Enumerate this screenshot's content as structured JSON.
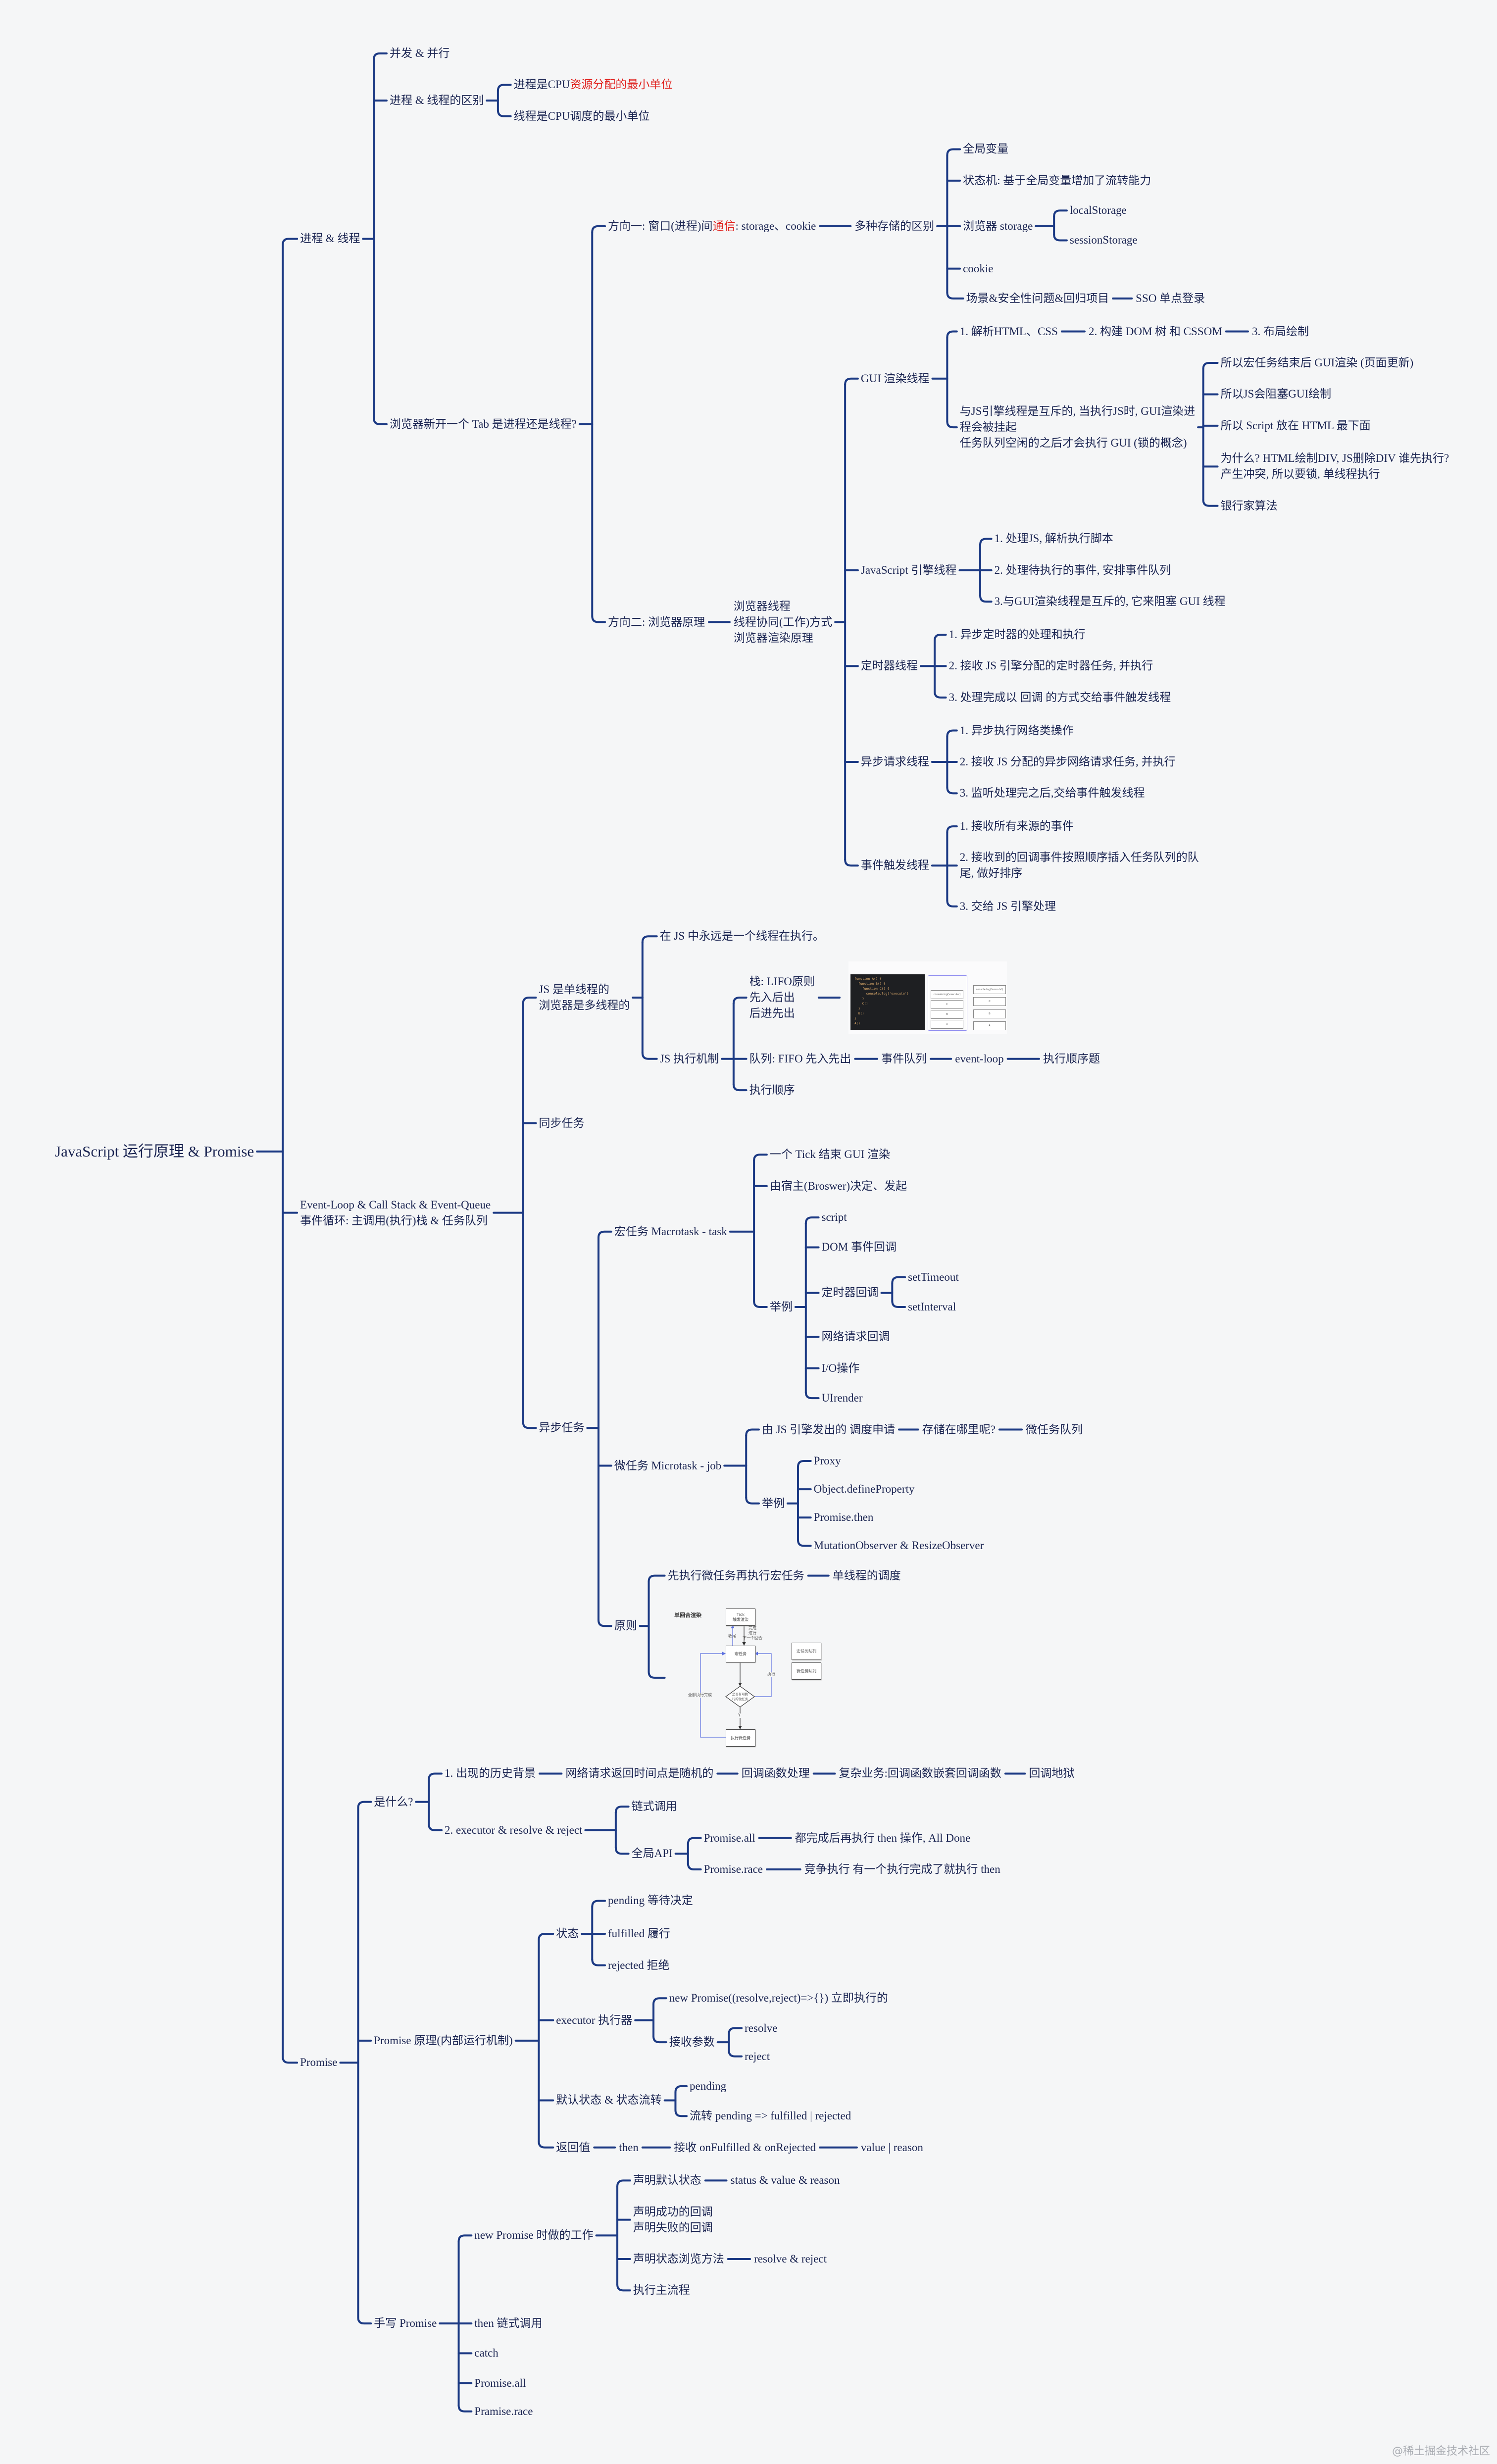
{
  "title": "JavaScript 运行原理 & Promise",
  "colors": {
    "line": "#1c3a84",
    "text": "#1b2552",
    "highlight": "#e0201c",
    "background": "#f5f6f7"
  },
  "process_thread": {
    "label": "进程 & 线程",
    "concurrency": "并发 & 并行",
    "difference": "进程 & 线程的区别",
    "process_def": {
      "text": "进程是CPU",
      "highlight": "资源分配的最小单位"
    },
    "thread_def": "线程是CPU调度的最小单位",
    "new_tab": "浏览器新开一个 Tab 是进程还是线程?",
    "direction1": {
      "text": "方向一: 窗口(进程)间",
      "highlight": "通信",
      "suffix": ": storage、cookie"
    },
    "storage_diff": "多种存储的区别",
    "storage_items": [
      "全局变量",
      "状态机: 基于全局变量增加了流转能力",
      "浏览器 storage",
      "cookie",
      "场景&安全性问题&回归项目"
    ],
    "browser_storage_items": [
      "localStorage",
      "sessionStorage"
    ],
    "sso": "SSO 单点登录",
    "direction2": "方向二: 浏览器原理",
    "direction2_topics": "浏览器线程\n线程协同(工作)方式\n浏览器渲染原理",
    "threads": {
      "gui": {
        "label": "GUI 渲染线程",
        "steps": [
          "1. 解析HTML、CSS",
          "2. 构建 DOM 树 和 CSSOM",
          "3. 布局绘制"
        ],
        "mutex": "与JS引擎线程是互斥的, 当执行JS时, GUI渲染进\n程会被挂起\n任务队列空闲的之后才会执行 GUI (锁的概念)",
        "consequences": [
          "所以宏任务结束后 GUI渲染 (页面更新)",
          "所以JS会阻塞GUI绘制",
          "所以 Script 放在 HTML 最下面",
          "为什么? HTML绘制DIV, JS删除DIV 谁先执行?\n产生冲突, 所以要锁, 单线程执行",
          "银行家算法"
        ]
      },
      "js_engine": {
        "label": "JavaScript 引擎线程",
        "items": [
          "1. 处理JS, 解析执行脚本",
          "2. 处理待执行的事件, 安排事件队列",
          "3.与GUI渲染线程是互斥的, 它来阻塞 GUI 线程"
        ]
      },
      "timer": {
        "label": "定时器线程",
        "items": [
          "1. 异步定时器的处理和执行",
          "2. 接收 JS 引擎分配的定时器任务, 并执行",
          "3. 处理完成以 回调 的方式交给事件触发线程"
        ]
      },
      "async_request": {
        "label": "异步请求线程",
        "items": [
          "1. 异步执行网络类操作",
          "2. 接收 JS 分配的异步网络请求任务, 并执行",
          "3. 监听处理完之后,交给事件触发线程"
        ]
      },
      "event_trigger": {
        "label": "事件触发线程",
        "items": [
          "1. 接收所有来源的事件",
          "2. 接收到的回调事件按照顺序插入任务队列的队\n尾, 做好排序",
          "3. 交给 JS 引擎处理"
        ]
      }
    }
  },
  "event_loop": {
    "label": "Event-Loop & Call Stack & Event-Queue\n事件循环: 主调用(执行)栈 & 任务队列",
    "single_thread": "JS 是单线程的\n浏览器是多线程的",
    "always_one": "在 JS 中永远是一个线程在执行。",
    "mechanism": "JS 执行机制",
    "stack": "栈: LIFO原则\n先入后出\n后进先出",
    "queue_chain": [
      "队列: FIFO 先入先出",
      "事件队列",
      "event-loop",
      "执行顺序题"
    ],
    "exec_order": "执行顺序",
    "sync": "同步任务",
    "async": "异步任务",
    "macro": {
      "label": "宏任务 Macrotask - task",
      "items": [
        "一个 Tick 结束 GUI 渲染",
        "由宿主(Broswer)决定、发起"
      ],
      "examples_label": "举例",
      "examples": [
        "script",
        "DOM 事件回调",
        "定时器回调",
        "网络请求回调",
        "I/O操作",
        "UIrender"
      ],
      "timers": [
        "setTimeout",
        "setInterval"
      ]
    },
    "micro": {
      "label": "微任务 Microtask - job",
      "chain": [
        "由 JS 引擎发出的 调度申请",
        "存储在哪里呢?",
        "微任务队列"
      ],
      "examples_label": "举例",
      "examples": [
        "Proxy",
        "Object.defineProperty",
        "Promise.then",
        "MutationObserver & ResizeObserver"
      ]
    },
    "principle": {
      "label": "原则",
      "chain": [
        "先执行微任务再执行宏任务",
        "单线程的调度"
      ]
    },
    "stack_figure": {
      "code": "function A() {\n  function B() {\n    function C() {\n      console.log('execute')\n    }\n    C()\n  }\n  B()\n}\nA()",
      "frames": [
        "console.log('execute')",
        "C",
        "B",
        "A"
      ]
    },
    "flow_figure": {
      "title": "单回合渲染",
      "tick": "Tick\n触发渲染",
      "macro": "宏任务",
      "decision": "是否有可执\n行的微任务",
      "micro_exec": "执行微任务",
      "macro_queue": "宏任务队列",
      "micro_queue": "微任务队列",
      "finish": "完成\n进行\n下一个回合",
      "wrap_up": "收尾",
      "execute": "执行",
      "all_done": "全部执行完成",
      "yes": "Y"
    }
  },
  "promise": {
    "label": "Promise",
    "what": {
      "label": "是什么?",
      "history": [
        "1. 出现的历史背景",
        "网络请求返回时间点是随机的",
        "回调函数处理",
        "复杂业务:回调函数嵌套回调函数",
        "回调地狱"
      ],
      "executor": "2. executor & resolve & reject",
      "chaining": "链式调用",
      "global_api": "全局API",
      "all": [
        "Promise.all",
        "都完成后再执行 then 操作, All Done"
      ],
      "race": [
        "Promise.race",
        "竞争执行 有一个执行完成了就执行 then"
      ]
    },
    "internals": {
      "label": "Promise 原理(内部运行机制)",
      "state": "状态",
      "states": [
        "pending 等待决定",
        "fulfilled 履行",
        "rejected 拒绝"
      ],
      "executor": "executor 执行器",
      "immediate": "new Promise((resolve,reject)=>{}) 立即执行的",
      "params": "接收参数",
      "param_items": [
        "resolve",
        "reject"
      ],
      "default_state": "默认状态 & 状态流转",
      "default_items": [
        "pending",
        "流转 pending => fulfilled | rejected"
      ],
      "return_chain": [
        "返回值",
        "then",
        "接收 onFulfilled & onRejected",
        "value | reason"
      ]
    },
    "handwritten": {
      "label": "手写 Promise",
      "new_work": "new Promise 时做的工作",
      "work_items": [
        "声明默认状态",
        "声明成功的回调\n声明失败的回调",
        "声明状态浏览方法",
        "执行主流程"
      ],
      "default_detail": "status & value & reason",
      "method_detail": "resolve & reject",
      "items": [
        "then 链式调用",
        "catch",
        "Promise.all",
        "Pramise.race"
      ]
    }
  },
  "watermark": "@稀土掘金技术社区"
}
